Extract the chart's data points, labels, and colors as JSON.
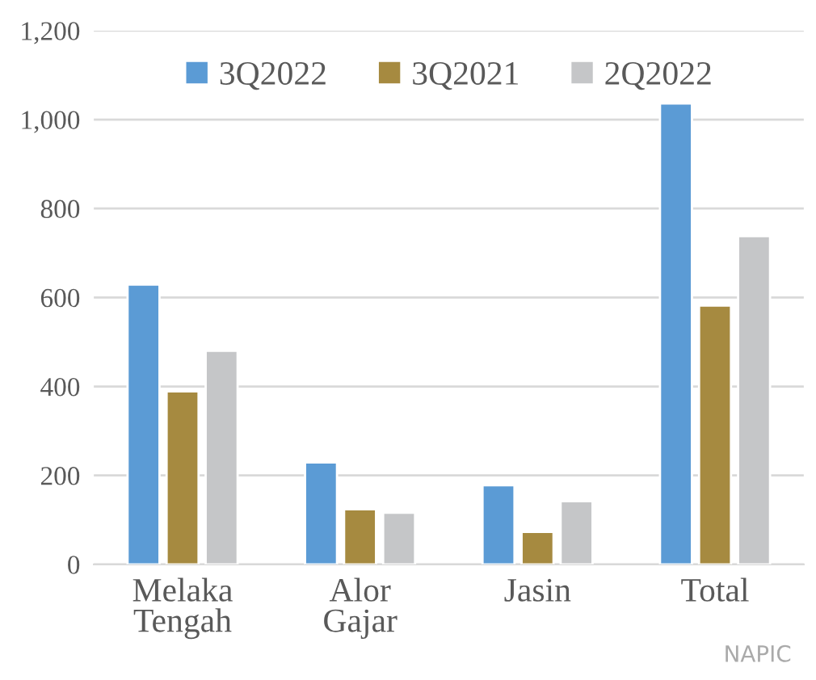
{
  "chart_data": {
    "type": "bar",
    "categories": [
      "Melaka\nTengah",
      "Alor\nGajar",
      "Jasin",
      "Total"
    ],
    "series": [
      {
        "name": "3Q2022",
        "color": "#5b9bd5",
        "values": [
          629,
          229,
          178,
          1036
        ]
      },
      {
        "name": "3Q2021",
        "color": "#a68a40",
        "values": [
          389,
          124,
          73,
          582
        ]
      },
      {
        "name": "2Q2022",
        "color": "#c5c6c8",
        "values": [
          480,
          116,
          142,
          738
        ]
      }
    ],
    "ylim": [
      0,
      1200
    ],
    "yticks": [
      {
        "value": 0,
        "label": "0"
      },
      {
        "value": 200,
        "label": "200"
      },
      {
        "value": 400,
        "label": "400"
      },
      {
        "value": 600,
        "label": "600"
      },
      {
        "value": 800,
        "label": "800"
      },
      {
        "value": 1000,
        "label": "1,000"
      },
      {
        "value": 1200,
        "label": "1,200"
      }
    ],
    "grid": "y",
    "legend": "top",
    "annotations": [
      "NAPIC"
    ]
  }
}
